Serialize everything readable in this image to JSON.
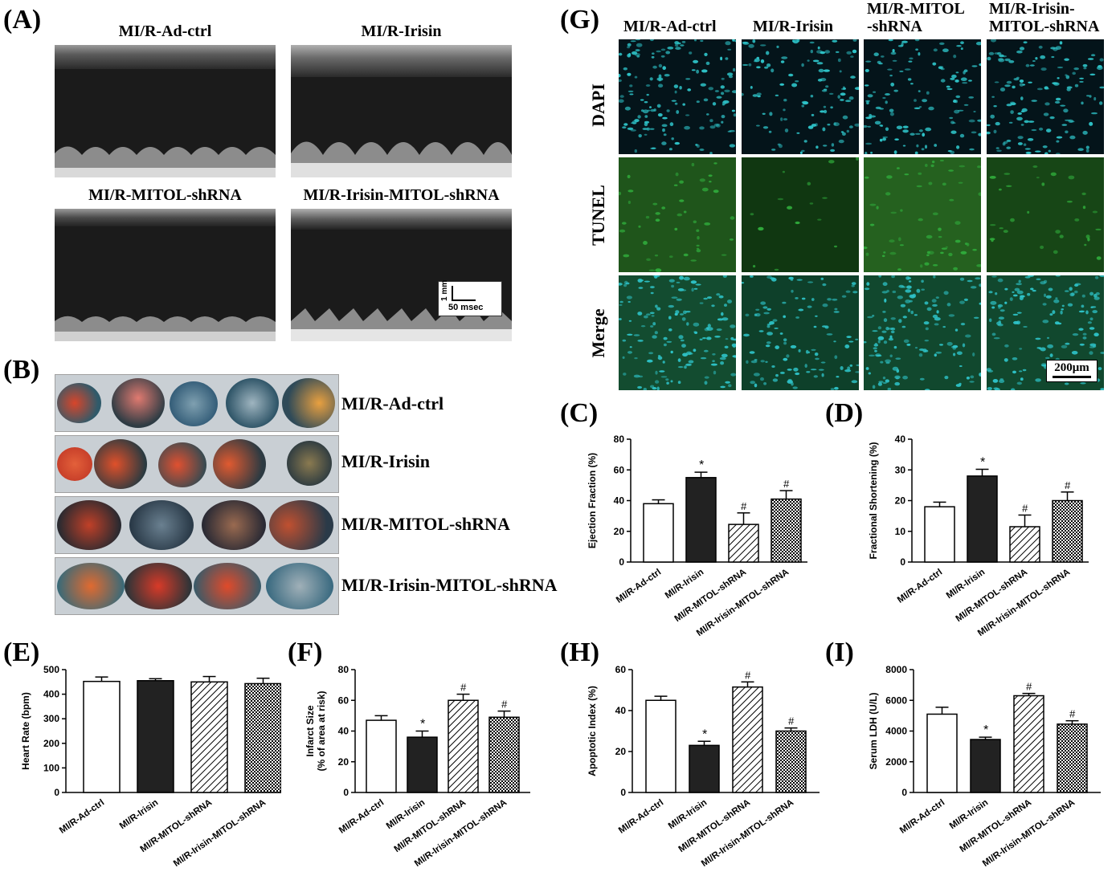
{
  "panels": {
    "A": "(A)",
    "B": "(B)",
    "C": "(C)",
    "D": "(D)",
    "E": "(E)",
    "F": "(F)",
    "G": "(G)",
    "H": "(H)",
    "I": "(I)"
  },
  "echo": {
    "titles": [
      "MI/R-Ad-ctrl",
      "MI/R-Irisin",
      "MI/R-MITOL-shRNA",
      "MI/R-Irisin-MITOL-shRNA"
    ],
    "scale_vertical": "1 mm",
    "scale_horizontal": "50 msec"
  },
  "ttc": {
    "labels": [
      "MI/R-Ad-ctrl",
      "MI/R-Irisin",
      "MI/R-MITOL-shRNA",
      "MI/R-Irisin-MITOL-shRNA"
    ]
  },
  "tunel": {
    "columns": [
      "MI/R-Ad-ctrl",
      "MI/R-Irisin",
      "MI/R-MITOL\n-shRNA",
      "MI/R-Irisin-\nMITOL-shRNA"
    ],
    "rows": [
      "DAPI",
      "TUNEL",
      "Merge"
    ],
    "scale_bar": "200μm"
  },
  "colors": {
    "dapi": "#2ec3c8",
    "tunel": "#2fa83a",
    "bar_dark": "#222222"
  },
  "chart_data": [
    {
      "id": "C",
      "type": "bar",
      "title": "",
      "categories": [
        "MI/R-Ad-ctrl",
        "MI/R-Irisin",
        "MI/R-MITOL-shRNA",
        "MI/R-Irisin-MITOL-shRNA"
      ],
      "values": [
        38,
        55,
        24.5,
        41
      ],
      "errors": [
        2.5,
        3.5,
        7.5,
        5.5
      ],
      "marks": [
        "",
        "*",
        "#",
        "#"
      ],
      "ylabel": "Ejection Fraction (%)",
      "xlabel": "",
      "ylim": [
        0,
        80
      ],
      "yticks": [
        0,
        20,
        40,
        60,
        80
      ],
      "fills": [
        "white",
        "black",
        "diag",
        "cross"
      ]
    },
    {
      "id": "D",
      "type": "bar",
      "title": "",
      "categories": [
        "MI/R-Ad-ctrl",
        "MI/R-Irisin",
        "MI/R-MITOL-shRNA",
        "MI/R-Irisin-MITOL-shRNA"
      ],
      "values": [
        18,
        28,
        11.5,
        20
      ],
      "errors": [
        1.5,
        2.2,
        3.8,
        2.8
      ],
      "marks": [
        "",
        "*",
        "#",
        "#"
      ],
      "ylabel": "Fractional Shortening (%)",
      "xlabel": "",
      "ylim": [
        0,
        40
      ],
      "yticks": [
        0,
        10,
        20,
        30,
        40
      ],
      "fills": [
        "white",
        "black",
        "diag",
        "cross"
      ]
    },
    {
      "id": "E",
      "type": "bar",
      "title": "",
      "categories": [
        "MI/R-Ad-ctrl",
        "MI/R-Irisin",
        "MI/R-MITOL-shRNA",
        "MI/R-Irisin-MITOL-shRNA"
      ],
      "values": [
        452,
        455,
        450,
        443
      ],
      "errors": [
        18,
        8,
        22,
        22
      ],
      "marks": [
        "",
        "",
        "",
        ""
      ],
      "ylabel": "Heart Rate (bpm)",
      "xlabel": "",
      "ylim": [
        0,
        500
      ],
      "yticks": [
        0,
        100,
        200,
        300,
        400,
        500
      ],
      "fills": [
        "white",
        "black",
        "diag",
        "cross"
      ]
    },
    {
      "id": "F",
      "type": "bar",
      "title": "",
      "categories": [
        "MI/R-Ad-ctrl",
        "MI/R-Irisin",
        "MI/R-MITOL-shRNA",
        "MI/R-Irisin-MITOL-shRNA"
      ],
      "values": [
        47,
        36,
        60,
        49
      ],
      "errors": [
        3,
        4,
        4,
        4
      ],
      "marks": [
        "",
        "*",
        "#",
        "#"
      ],
      "ylabel": "Infarct Size\n(% of area at risk)",
      "xlabel": "",
      "ylim": [
        0,
        80
      ],
      "yticks": [
        0,
        20,
        40,
        60,
        80
      ],
      "fills": [
        "white",
        "black",
        "diag",
        "cross"
      ]
    },
    {
      "id": "H",
      "type": "bar",
      "title": "",
      "categories": [
        "MI/R-Ad-ctrl",
        "MI/R-Irisin",
        "MI/R-MITOL-shRNA",
        "MI/R-Irisin-MITOL-shRNA"
      ],
      "values": [
        45,
        23,
        51.5,
        30
      ],
      "errors": [
        2,
        2,
        2.5,
        1.5
      ],
      "marks": [
        "",
        "*",
        "#",
        "#"
      ],
      "ylabel": "Apoptotic Index (%)",
      "xlabel": "",
      "ylim": [
        0,
        60
      ],
      "yticks": [
        0,
        20,
        40,
        60
      ],
      "fills": [
        "white",
        "black",
        "diag",
        "cross"
      ]
    },
    {
      "id": "I",
      "type": "bar",
      "title": "",
      "categories": [
        "MI/R-Ad-ctrl",
        "MI/R-Irisin",
        "MI/R-MITOL-shRNA",
        "MI/R-Irisin-MITOL-shRNA"
      ],
      "values": [
        5100,
        3450,
        6300,
        4450
      ],
      "errors": [
        450,
        150,
        150,
        220
      ],
      "marks": [
        "",
        "*",
        "#",
        "#"
      ],
      "ylabel": "Serum LDH (U/L)",
      "xlabel": "",
      "ylim": [
        0,
        8000
      ],
      "yticks": [
        0,
        2000,
        4000,
        6000,
        8000
      ],
      "fills": [
        "white",
        "black",
        "diag",
        "cross"
      ]
    }
  ]
}
